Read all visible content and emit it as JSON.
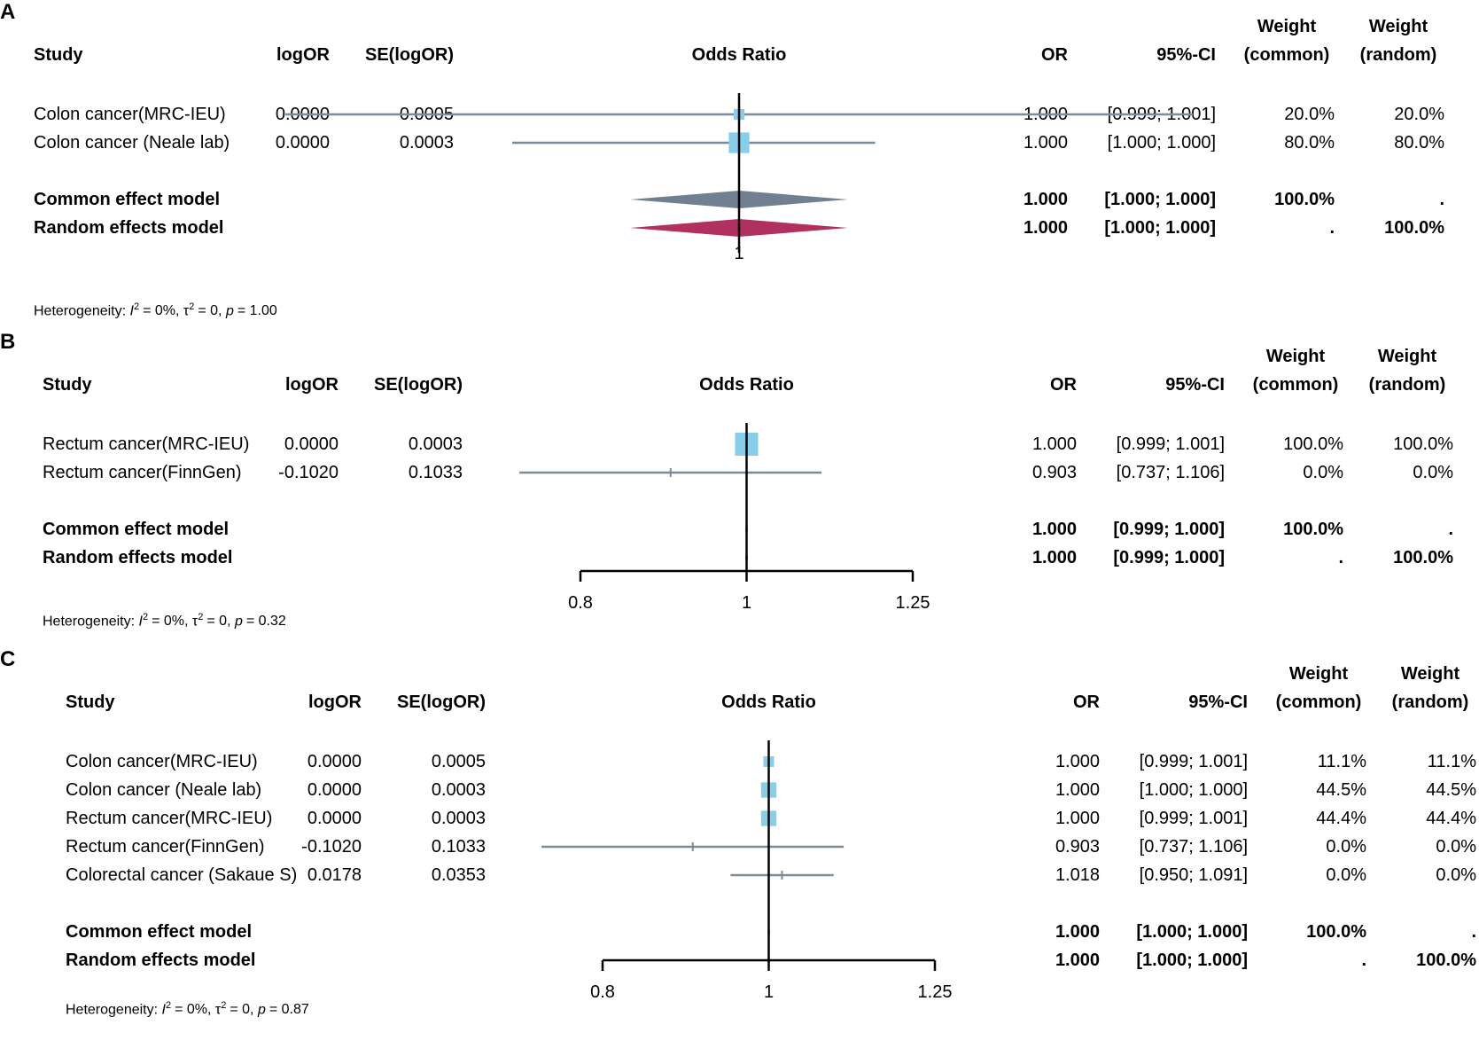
{
  "colors": {
    "square": "#87CEEB",
    "ci": "#7A8B99",
    "common": "#708090",
    "random": "#B03060",
    "axis": "#000000"
  },
  "headers": {
    "study": "Study",
    "logor": "logOR",
    "se": "SE(logOR)",
    "plot": "Odds Ratio",
    "or": "OR",
    "ci": "95%-CI",
    "weight": "Weight",
    "w_common": "(common)",
    "w_random": "(random)"
  },
  "chart_data": [
    {
      "panel": "A",
      "type": "forest",
      "xlabel": "Odds Ratio",
      "x_ticks": [
        "1"
      ],
      "xlim": [
        0.9995,
        1.0005
      ],
      "studies": [
        {
          "name": "Colon cancer(MRC-IEU)",
          "logor": "0.0000",
          "se": "0.0005",
          "or": 1.0,
          "ci_low": 0.999,
          "ci_high": 1.001,
          "or_text": "1.000",
          "ci_text": "[0.999; 1.001]",
          "w_common": "20.0%",
          "w_random": "20.0%",
          "weight": 20.0
        },
        {
          "name": "Colon cancer (Neale lab)",
          "logor": "0.0000",
          "se": "0.0003",
          "or": 1.0,
          "ci_low": 0.9995,
          "ci_high": 1.0003,
          "or_text": "1.000",
          "ci_text": "[1.000; 1.000]",
          "w_common": "80.0%",
          "w_random": "80.0%",
          "weight": 80.0
        }
      ],
      "common": {
        "label": "Common effect model",
        "or": 1.0,
        "ci_low": 0.99976,
        "ci_high": 1.00024,
        "or_text": "1.000",
        "ci_text": "[1.000; 1.000]",
        "w_common": "100.0%",
        "w_random": "."
      },
      "random": {
        "label": "Random effects model",
        "or": 1.0,
        "ci_low": 0.99976,
        "ci_high": 1.00024,
        "or_text": "1.000",
        "ci_text": "[1.000; 1.000]",
        "w_common": ".",
        "w_random": "100.0%"
      },
      "heterogeneity": {
        "prefix": "Heterogeneity: ",
        "i2": "= 0%, ",
        "tau2": "= 0, ",
        "p": "= 1.00"
      }
    },
    {
      "panel": "B",
      "type": "forest",
      "xlabel": "Odds Ratio",
      "x_ticks": [
        "0.8",
        "1",
        "1.25"
      ],
      "xlim": [
        0.8,
        1.25
      ],
      "studies": [
        {
          "name": "Rectum cancer(MRC-IEU)",
          "logor": "0.0000",
          "se": "0.0003",
          "or": 1.0,
          "ci_low": 0.999,
          "ci_high": 1.001,
          "or_text": "1.000",
          "ci_text": "[0.999; 1.001]",
          "w_common": "100.0%",
          "w_random": "100.0%",
          "weight": 100.0
        },
        {
          "name": "Rectum cancer(FinnGen)",
          "logor": "-0.1020",
          "se": "0.1033",
          "or": 0.903,
          "ci_low": 0.737,
          "ci_high": 1.106,
          "or_text": "0.903",
          "ci_text": "[0.737; 1.106]",
          "w_common": "0.0%",
          "w_random": "0.0%",
          "weight": 0.0
        }
      ],
      "common": {
        "label": "Common effect model",
        "or": 1.0,
        "ci_low": 0.999,
        "ci_high": 1.0,
        "or_text": "1.000",
        "ci_text": "[0.999; 1.000]",
        "w_common": "100.0%",
        "w_random": "."
      },
      "random": {
        "label": "Random effects model",
        "or": 1.0,
        "ci_low": 0.999,
        "ci_high": 1.0,
        "or_text": "1.000",
        "ci_text": "[0.999; 1.000]",
        "w_common": ".",
        "w_random": "100.0%"
      },
      "heterogeneity": {
        "prefix": "Heterogeneity: ",
        "i2": "= 0%, ",
        "tau2": "= 0, ",
        "p": "= 0.32"
      }
    },
    {
      "panel": "C",
      "type": "forest",
      "xlabel": "Odds Ratio",
      "x_ticks": [
        "0.8",
        "1",
        "1.25"
      ],
      "xlim": [
        0.8,
        1.25
      ],
      "studies": [
        {
          "name": "Colon cancer(MRC-IEU)",
          "logor": "0.0000",
          "se": "0.0005",
          "or": 1.0,
          "ci_low": 0.999,
          "ci_high": 1.001,
          "or_text": "1.000",
          "ci_text": "[0.999; 1.001]",
          "w_common": "11.1%",
          "w_random": "11.1%",
          "weight": 11.1
        },
        {
          "name": "Colon cancer (Neale lab)",
          "logor": "0.0000",
          "se": "0.0003",
          "or": 1.0,
          "ci_low": 1.0,
          "ci_high": 1.0,
          "or_text": "1.000",
          "ci_text": "[1.000; 1.000]",
          "w_common": "44.5%",
          "w_random": "44.5%",
          "weight": 44.5
        },
        {
          "name": "Rectum cancer(MRC-IEU)",
          "logor": "0.0000",
          "se": "0.0003",
          "or": 1.0,
          "ci_low": 0.999,
          "ci_high": 1.001,
          "or_text": "1.000",
          "ci_text": "[0.999; 1.001]",
          "w_common": "44.4%",
          "w_random": "44.4%",
          "weight": 44.4
        },
        {
          "name": "Rectum cancer(FinnGen)",
          "logor": "-0.1020",
          "se": "0.1033",
          "or": 0.903,
          "ci_low": 0.737,
          "ci_high": 1.106,
          "or_text": "0.903",
          "ci_text": "[0.737; 1.106]",
          "w_common": "0.0%",
          "w_random": "0.0%",
          "weight": 0.0
        },
        {
          "name": "Colorectal cancer (Sakaue S)",
          "logor": "0.0178",
          "se": "0.0353",
          "or": 1.018,
          "ci_low": 0.95,
          "ci_high": 1.091,
          "or_text": "1.018",
          "ci_text": "[0.950; 1.091]",
          "w_common": "0.0%",
          "w_random": "0.0%",
          "weight": 0.0
        }
      ],
      "common": {
        "label": "Common effect model",
        "or": 1.0,
        "ci_low": 1.0,
        "ci_high": 1.0,
        "or_text": "1.000",
        "ci_text": "[1.000; 1.000]",
        "w_common": "100.0%",
        "w_random": "."
      },
      "random": {
        "label": "Random effects model",
        "or": 1.0,
        "ci_low": 1.0,
        "ci_high": 1.0,
        "or_text": "1.000",
        "ci_text": "[1.000; 1.000]",
        "w_common": ".",
        "w_random": "100.0%"
      },
      "heterogeneity": {
        "prefix": "Heterogeneity: ",
        "i2": "= 0%, ",
        "tau2": "= 0, ",
        "p": "= 0.87"
      }
    }
  ]
}
